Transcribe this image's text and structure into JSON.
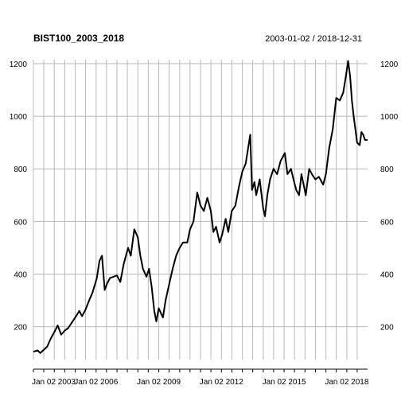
{
  "chart_data": {
    "type": "line",
    "title": "BIST100_2003_2018",
    "date_range": "2003-01-02 / 2018-12-31",
    "xlabel": "",
    "ylabel": "",
    "x_ticks": [
      "Jan 02 2003",
      "Jan 02 2006",
      "Jan 02 2009",
      "Jan 02 2012",
      "Jan 02 2015",
      "Jan 02 2018"
    ],
    "y_ticks": [
      200,
      400,
      600,
      800,
      1000,
      1200
    ],
    "ylim": [
      75,
      1215
    ],
    "xlim": [
      "2003-01-02",
      "2018-12-31"
    ],
    "grid": true,
    "series": [
      {
        "values": [
          [
            "2003-01-02",
            105
          ],
          [
            "2003-03-15",
            110
          ],
          [
            "2003-05-01",
            100
          ],
          [
            "2003-07-01",
            112
          ],
          [
            "2003-09-01",
            125
          ],
          [
            "2003-11-01",
            155
          ],
          [
            "2004-01-15",
            185
          ],
          [
            "2004-03-01",
            205
          ],
          [
            "2004-05-01",
            170
          ],
          [
            "2004-07-01",
            185
          ],
          [
            "2004-09-01",
            195
          ],
          [
            "2004-11-01",
            215
          ],
          [
            "2005-01-01",
            235
          ],
          [
            "2005-03-15",
            260
          ],
          [
            "2005-05-01",
            240
          ],
          [
            "2005-07-01",
            265
          ],
          [
            "2005-09-01",
            300
          ],
          [
            "2005-11-01",
            330
          ],
          [
            "2006-01-15",
            385
          ],
          [
            "2006-03-01",
            450
          ],
          [
            "2006-04-15",
            470
          ],
          [
            "2006-06-01",
            340
          ],
          [
            "2006-07-15",
            365
          ],
          [
            "2006-09-01",
            385
          ],
          [
            "2006-11-01",
            390
          ],
          [
            "2007-01-01",
            395
          ],
          [
            "2007-03-01",
            370
          ],
          [
            "2007-05-01",
            440
          ],
          [
            "2007-07-15",
            500
          ],
          [
            "2007-09-01",
            470
          ],
          [
            "2007-11-01",
            570
          ],
          [
            "2008-01-01",
            540
          ],
          [
            "2008-02-15",
            470
          ],
          [
            "2008-04-01",
            420
          ],
          [
            "2008-06-01",
            390
          ],
          [
            "2008-07-15",
            420
          ],
          [
            "2008-09-01",
            350
          ],
          [
            "2008-10-15",
            260
          ],
          [
            "2008-11-20",
            220
          ],
          [
            "2009-01-01",
            270
          ],
          [
            "2009-03-15",
            235
          ],
          [
            "2009-05-01",
            300
          ],
          [
            "2009-07-01",
            360
          ],
          [
            "2009-09-01",
            420
          ],
          [
            "2009-11-01",
            470
          ],
          [
            "2010-01-01",
            500
          ],
          [
            "2010-03-01",
            520
          ],
          [
            "2010-05-15",
            520
          ],
          [
            "2010-07-01",
            570
          ],
          [
            "2010-09-01",
            600
          ],
          [
            "2010-11-05",
            710
          ],
          [
            "2011-01-01",
            660
          ],
          [
            "2011-03-01",
            640
          ],
          [
            "2011-05-01",
            690
          ],
          [
            "2011-07-01",
            640
          ],
          [
            "2011-08-15",
            560
          ],
          [
            "2011-10-01",
            580
          ],
          [
            "2011-12-01",
            520
          ],
          [
            "2012-01-15",
            550
          ],
          [
            "2012-03-15",
            610
          ],
          [
            "2012-05-01",
            560
          ],
          [
            "2012-07-01",
            640
          ],
          [
            "2012-09-01",
            660
          ],
          [
            "2012-11-01",
            730
          ],
          [
            "2013-01-01",
            790
          ],
          [
            "2013-03-01",
            820
          ],
          [
            "2013-05-20",
            930
          ],
          [
            "2013-06-20",
            720
          ],
          [
            "2013-08-01",
            750
          ],
          [
            "2013-09-01",
            700
          ],
          [
            "2013-11-01",
            760
          ],
          [
            "2014-01-01",
            650
          ],
          [
            "2014-02-01",
            620
          ],
          [
            "2014-03-15",
            700
          ],
          [
            "2014-05-01",
            760
          ],
          [
            "2014-07-01",
            800
          ],
          [
            "2014-09-01",
            780
          ],
          [
            "2014-11-01",
            830
          ],
          [
            "2015-01-15",
            860
          ],
          [
            "2015-03-01",
            780
          ],
          [
            "2015-05-01",
            800
          ],
          [
            "2015-06-15",
            760
          ],
          [
            "2015-08-01",
            720
          ],
          [
            "2015-09-20",
            700
          ],
          [
            "2015-11-01",
            780
          ],
          [
            "2016-01-15",
            700
          ],
          [
            "2016-03-15",
            800
          ],
          [
            "2016-05-01",
            780
          ],
          [
            "2016-07-01",
            760
          ],
          [
            "2016-09-01",
            770
          ],
          [
            "2016-11-15",
            740
          ],
          [
            "2017-01-01",
            780
          ],
          [
            "2017-03-01",
            880
          ],
          [
            "2017-05-01",
            950
          ],
          [
            "2017-07-01",
            1070
          ],
          [
            "2017-09-01",
            1060
          ],
          [
            "2017-11-01",
            1090
          ],
          [
            "2017-12-15",
            1150
          ],
          [
            "2018-01-25",
            1210
          ],
          [
            "2018-03-01",
            1150
          ],
          [
            "2018-04-01",
            1060
          ],
          [
            "2018-05-01",
            1000
          ],
          [
            "2018-06-01",
            950
          ],
          [
            "2018-07-01",
            900
          ],
          [
            "2018-08-15",
            890
          ],
          [
            "2018-09-15",
            940
          ],
          [
            "2018-10-15",
            930
          ],
          [
            "2018-11-15",
            910
          ],
          [
            "2018-12-31",
            910
          ]
        ]
      }
    ]
  }
}
